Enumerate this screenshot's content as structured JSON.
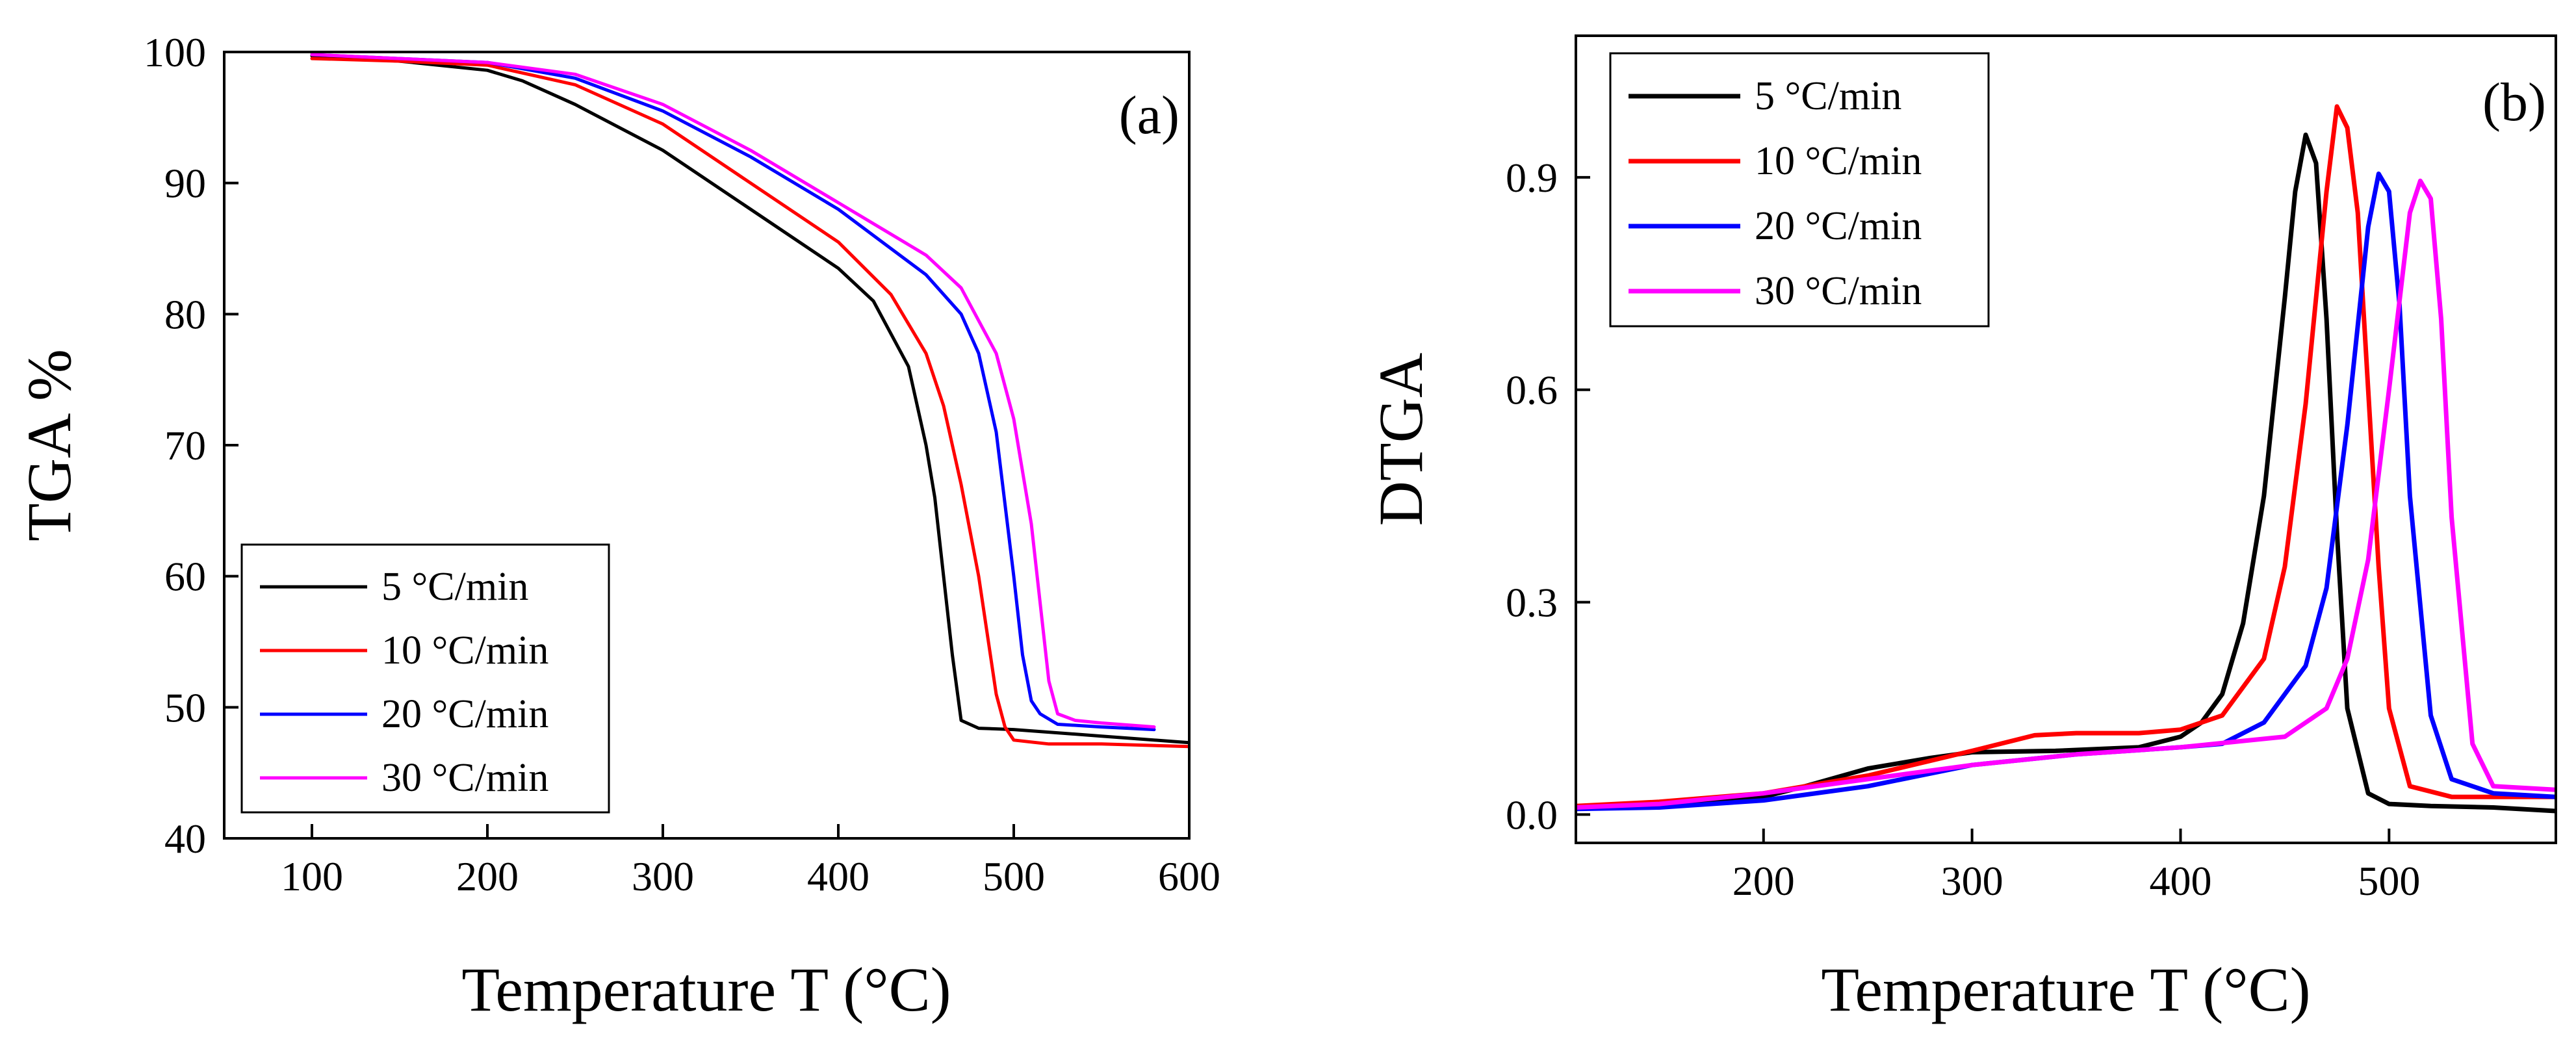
{
  "chart_data": [
    {
      "panel": "a",
      "type": "line",
      "panel_label": "(a)",
      "title": "",
      "xlabel": "Temperature T (°C)",
      "ylabel": "TGA %",
      "xlim": [
        50,
        600
      ],
      "ylim": [
        40,
        100
      ],
      "xticks": [
        100,
        200,
        300,
        400,
        500,
        600
      ],
      "yticks": [
        40,
        50,
        60,
        70,
        80,
        90,
        100
      ],
      "legend_position": "bottom-left",
      "series": [
        {
          "name": "5 °C/min",
          "color": "#000000",
          "x": [
            100,
            150,
            200,
            220,
            250,
            300,
            350,
            400,
            420,
            440,
            450,
            455,
            460,
            465,
            470,
            480,
            500,
            550,
            600
          ],
          "y": [
            99.7,
            99.3,
            98.6,
            97.8,
            96.0,
            92.5,
            88.0,
            83.5,
            81.0,
            76.0,
            70.0,
            66.0,
            60.0,
            54.0,
            49.0,
            48.4,
            48.3,
            47.8,
            47.3
          ]
        },
        {
          "name": "10 °C/min",
          "color": "#ff0000",
          "x": [
            100,
            150,
            200,
            250,
            300,
            350,
            400,
            430,
            450,
            460,
            470,
            480,
            490,
            495,
            500,
            520,
            550,
            600
          ],
          "y": [
            99.5,
            99.3,
            99.0,
            97.5,
            94.5,
            90.0,
            85.5,
            81.5,
            77.0,
            73.0,
            67.0,
            60.0,
            51.0,
            48.5,
            47.5,
            47.2,
            47.2,
            47.0
          ]
        },
        {
          "name": "20 °C/min",
          "color": "#0000ff",
          "x": [
            100,
            150,
            200,
            250,
            300,
            350,
            400,
            450,
            470,
            480,
            490,
            500,
            505,
            510,
            515,
            525,
            550,
            580
          ],
          "y": [
            99.8,
            99.5,
            99.2,
            98.0,
            95.5,
            92.0,
            88.0,
            83.0,
            80.0,
            77.0,
            71.0,
            60.0,
            54.0,
            50.5,
            49.5,
            48.7,
            48.5,
            48.3
          ]
        },
        {
          "name": "30 °C/min",
          "color": "#ff00ff",
          "x": [
            100,
            150,
            200,
            250,
            300,
            350,
            400,
            450,
            470,
            490,
            500,
            510,
            515,
            520,
            525,
            535,
            550,
            580
          ],
          "y": [
            99.8,
            99.5,
            99.2,
            98.3,
            96.0,
            92.5,
            88.5,
            84.5,
            82.0,
            77.0,
            72.0,
            64.0,
            58.0,
            52.0,
            49.5,
            49.0,
            48.8,
            48.5
          ]
        }
      ]
    },
    {
      "panel": "b",
      "type": "line",
      "panel_label": "(b)",
      "title": "",
      "xlabel": "Temperature T (°C)",
      "ylabel": "DTGA",
      "xlim": [
        110,
        580
      ],
      "ylim": [
        -0.04,
        1.1
      ],
      "xticks": [
        200,
        300,
        400,
        500
      ],
      "yticks": [
        0.0,
        0.3,
        0.6,
        0.9
      ],
      "ytick_labels": [
        "0.0",
        "0.3",
        "0.6",
        "0.9"
      ],
      "legend_position": "top-left",
      "series": [
        {
          "name": "5 °C/min",
          "color": "#000000",
          "x": [
            110,
            150,
            200,
            220,
            250,
            280,
            300,
            340,
            380,
            400,
            410,
            420,
            430,
            440,
            450,
            455,
            460,
            465,
            470,
            475,
            480,
            490,
            500,
            520,
            550,
            580
          ],
          "y": [
            0.01,
            0.015,
            0.025,
            0.04,
            0.065,
            0.08,
            0.088,
            0.09,
            0.095,
            0.11,
            0.13,
            0.17,
            0.27,
            0.45,
            0.73,
            0.88,
            0.96,
            0.92,
            0.7,
            0.4,
            0.15,
            0.03,
            0.015,
            0.012,
            0.01,
            0.005
          ]
        },
        {
          "name": "10 °C/min",
          "color": "#ff0000",
          "x": [
            110,
            150,
            200,
            250,
            300,
            330,
            350,
            380,
            400,
            420,
            440,
            450,
            460,
            470,
            475,
            480,
            485,
            490,
            495,
            500,
            510,
            530,
            550,
            580
          ],
          "y": [
            0.012,
            0.018,
            0.03,
            0.055,
            0.09,
            0.112,
            0.115,
            0.115,
            0.12,
            0.14,
            0.22,
            0.35,
            0.58,
            0.88,
            1.0,
            0.97,
            0.85,
            0.6,
            0.35,
            0.15,
            0.04,
            0.025,
            0.025,
            0.025
          ]
        },
        {
          "name": "20 °C/min",
          "color": "#0000ff",
          "x": [
            110,
            150,
            200,
            250,
            300,
            350,
            400,
            420,
            440,
            460,
            470,
            480,
            490,
            495,
            500,
            505,
            510,
            520,
            530,
            550,
            580
          ],
          "y": [
            0.008,
            0.01,
            0.02,
            0.04,
            0.07,
            0.085,
            0.095,
            0.1,
            0.13,
            0.21,
            0.32,
            0.55,
            0.83,
            0.905,
            0.88,
            0.72,
            0.45,
            0.14,
            0.05,
            0.03,
            0.025
          ]
        },
        {
          "name": "30 °C/min",
          "color": "#ff00ff",
          "x": [
            110,
            150,
            200,
            250,
            300,
            350,
            400,
            450,
            470,
            480,
            490,
            500,
            510,
            515,
            520,
            525,
            530,
            540,
            550,
            580
          ],
          "y": [
            0.01,
            0.015,
            0.03,
            0.05,
            0.07,
            0.085,
            0.095,
            0.11,
            0.15,
            0.22,
            0.36,
            0.6,
            0.85,
            0.895,
            0.87,
            0.7,
            0.42,
            0.1,
            0.04,
            0.035
          ]
        }
      ]
    }
  ]
}
